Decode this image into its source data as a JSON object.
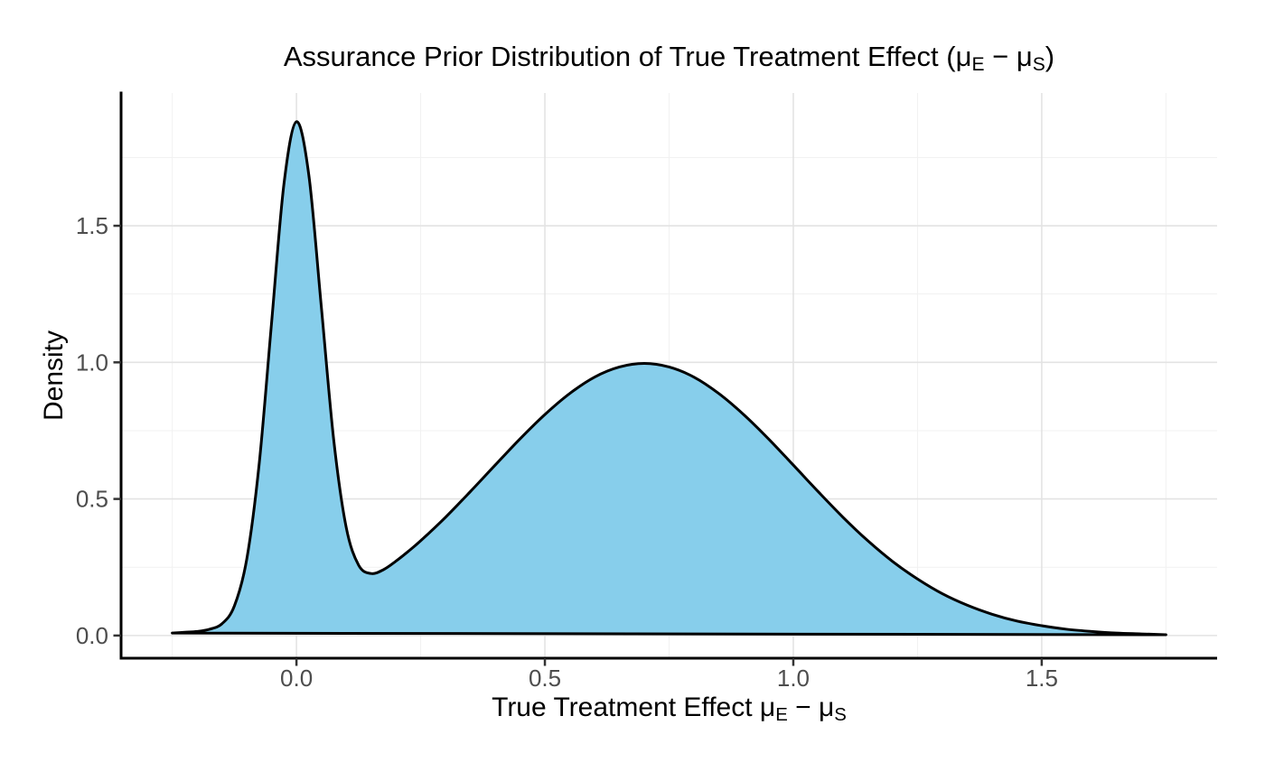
{
  "title": {
    "seg1": "Assurance Prior Distribution of True Treatment Effect (μ",
    "sub1": "E",
    "seg2": " − μ",
    "sub2": "S",
    "seg3": ")"
  },
  "xlabel": {
    "seg1": "True Treatment Effect μ",
    "sub1": "E",
    "seg2": " − μ",
    "sub2": "S"
  },
  "ylabel": "Density",
  "colors": {
    "fill": "#87CEEB",
    "stroke": "#000000",
    "grid_major": "#E3E3E3",
    "grid_minor": "#F1F1F1",
    "axis_line": "#000000",
    "tick_mark": "#333333",
    "tick_label": "#4D4D4D",
    "background": "#FFFFFF"
  },
  "chart_data": {
    "type": "area",
    "title": "Assurance Prior Distribution of True Treatment Effect (μE − μS)",
    "xlabel": "True Treatment Effect μE − μS",
    "ylabel": "Density",
    "legend_position": "none",
    "grid": "major+minor",
    "xlim": [
      -0.353,
      1.853
    ],
    "ylim": [
      -0.083,
      1.986
    ],
    "x_ticks": {
      "values": [
        0.0,
        0.5,
        1.0,
        1.5
      ],
      "labels": [
        "0.0",
        "0.5",
        "1.0",
        "1.5"
      ]
    },
    "x_minor": [
      -0.25,
      0.25,
      0.75,
      1.25,
      1.75
    ],
    "y_ticks": {
      "values": [
        0.0,
        0.5,
        1.0,
        1.5
      ],
      "labels": [
        "0.0",
        "0.5",
        "1.0",
        "1.5"
      ]
    },
    "y_minor": [
      0.25,
      0.75,
      1.25,
      1.75
    ],
    "features": {
      "mode_1": {
        "x": 0.0,
        "density": 1.88
      },
      "antimode": {
        "x": 0.15,
        "density": 0.23
      },
      "mode_2": {
        "x": 0.7,
        "density": 1.0
      },
      "support": [
        -0.25,
        1.75
      ]
    },
    "series": [
      {
        "name": "assurance-prior-density",
        "x": [
          -0.25,
          -0.225,
          -0.2,
          -0.175,
          -0.15,
          -0.125,
          -0.1,
          -0.075,
          -0.05,
          -0.025,
          0,
          0.025,
          0.05,
          0.075,
          0.1,
          0.125,
          0.15,
          0.175,
          0.2,
          0.225,
          0.25,
          0.3,
          0.35,
          0.4,
          0.45,
          0.5,
          0.55,
          0.6,
          0.65,
          0.7,
          0.75,
          0.8,
          0.85,
          0.9,
          0.95,
          1.0,
          1.05,
          1.1,
          1.15,
          1.2,
          1.25,
          1.3,
          1.35,
          1.4,
          1.45,
          1.5,
          1.55,
          1.6,
          1.65,
          1.7,
          1.75
        ],
        "y": [
          0.009,
          0.012,
          0.015,
          0.023,
          0.043,
          0.108,
          0.28,
          0.629,
          1.147,
          1.656,
          1.881,
          1.684,
          1.204,
          0.716,
          0.397,
          0.258,
          0.227,
          0.241,
          0.272,
          0.308,
          0.347,
          0.433,
          0.527,
          0.624,
          0.72,
          0.809,
          0.886,
          0.946,
          0.983,
          0.996,
          0.983,
          0.946,
          0.886,
          0.809,
          0.72,
          0.624,
          0.527,
          0.433,
          0.347,
          0.271,
          0.207,
          0.153,
          0.111,
          0.078,
          0.053,
          0.036,
          0.023,
          0.015,
          0.009,
          0.006,
          0.003
        ]
      }
    ]
  }
}
